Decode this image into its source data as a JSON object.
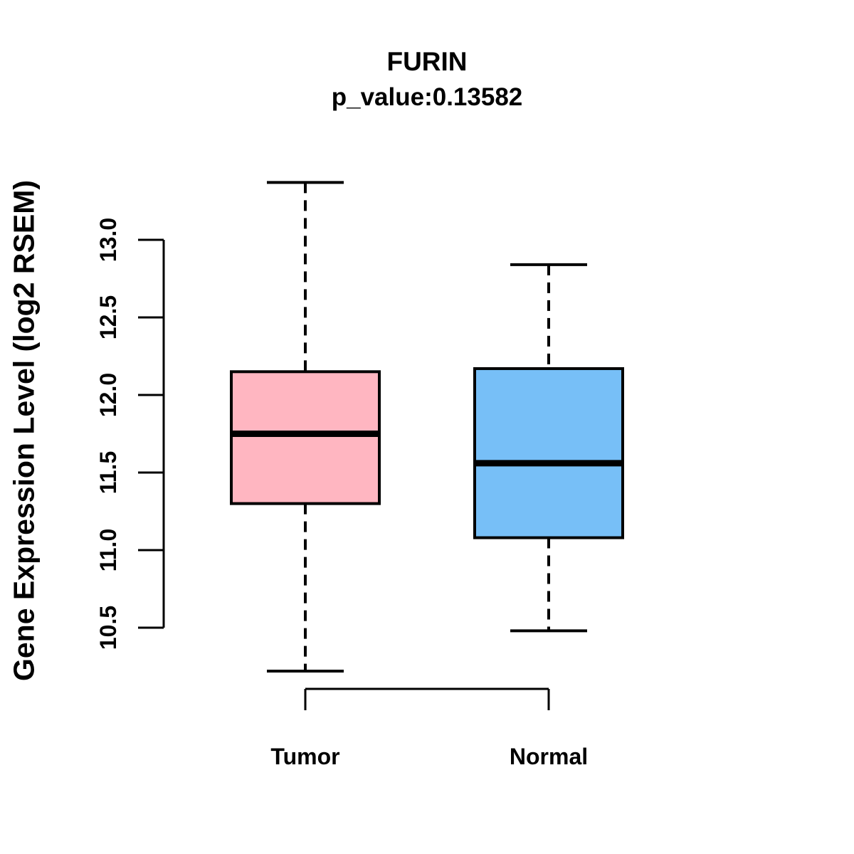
{
  "chart_data": {
    "type": "boxplot",
    "title": "FURIN",
    "subtitle": "p_value:0.13582",
    "ylabel": "Gene Expression Level (log2 RSEM)",
    "xlabel": "",
    "ylim": [
      10.5,
      13.0
    ],
    "yticks": [
      10.5,
      11.0,
      11.5,
      12.0,
      12.5,
      13.0
    ],
    "ytick_labels": [
      "10.5",
      "11.0",
      "11.5",
      "12.0",
      "12.5",
      "13.0"
    ],
    "categories": [
      "Tumor",
      "Normal"
    ],
    "grid": false,
    "legend": "none",
    "whisker_line_style": "dashed",
    "series": [
      {
        "name": "Tumor",
        "whisker_low": 10.22,
        "q1": 11.3,
        "median": 11.75,
        "q3": 12.15,
        "whisker_high": 13.37,
        "fill_color": "#FFB6C1"
      },
      {
        "name": "Normal",
        "whisker_low": 10.48,
        "q1": 11.08,
        "median": 11.56,
        "q3": 12.17,
        "whisker_high": 12.84,
        "fill_color": "#77BFF7"
      }
    ],
    "colors": {
      "tumor_fill": "#FFB6C1",
      "normal_fill": "#77BFF7",
      "line": "#000000",
      "background": "#ffffff"
    }
  }
}
